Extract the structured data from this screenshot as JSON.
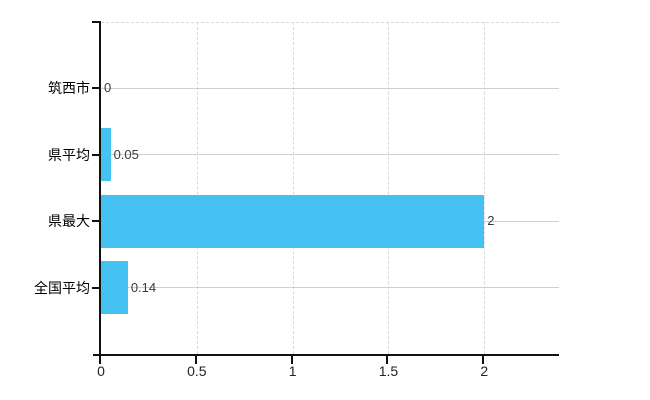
{
  "chart_data": {
    "type": "bar",
    "orientation": "horizontal",
    "title": "",
    "xlabel": "",
    "ylabel": "",
    "categories": [
      "筑西市",
      "県平均",
      "県最大",
      "全国平均"
    ],
    "values": [
      0,
      0.05,
      2,
      0.14
    ],
    "value_labels": [
      "0",
      "0.05",
      "2",
      "0.14"
    ],
    "x_ticks": [
      0,
      0.5,
      1,
      1.5,
      2
    ],
    "x_tick_labels": [
      "0",
      "0.5",
      "1",
      "1.5",
      "2"
    ],
    "xlim": [
      0,
      2.39
    ],
    "grid": true,
    "legend": null,
    "colors": {
      "bar": "#45C2F1",
      "h_gridline": "#CBD4CB",
      "v_gridline": "#D9D9DE",
      "axis": "#111111",
      "category_label": "#000000",
      "value_label": "#3A3A3A",
      "tick_label": "#222222",
      "background": "#FFFFFF"
    }
  }
}
